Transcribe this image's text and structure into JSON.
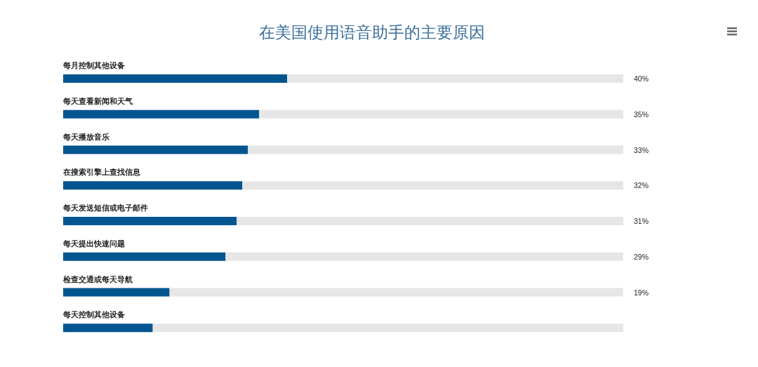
{
  "chart_data": {
    "type": "bar",
    "orientation": "horizontal",
    "stacked": true,
    "title": "在美国使用语音助手的主要原因",
    "categories": [
      "每月控制其他设备",
      "每天查看新闻和天气",
      "每天播放音乐",
      "在搜索引擎上查找信息",
      "每天发送短信或电子邮件",
      "每天提出快速问题",
      "检查交通或每天导航",
      "每天控制其他设备"
    ],
    "series": [
      {
        "color": "#02558f",
        "values": [
          40,
          35,
          33,
          32,
          31,
          29,
          19,
          16
        ],
        "value_labels": [
          "40%",
          "35%",
          "33%",
          "32%",
          "31%",
          "29%",
          "19%",
          null
        ]
      },
      {
        "color": "#e6e6e6",
        "values": [
          60,
          65,
          67,
          68,
          69,
          71,
          81,
          84
        ]
      }
    ],
    "xlim": [
      0,
      100
    ],
    "tick_labels": "y"
  }
}
